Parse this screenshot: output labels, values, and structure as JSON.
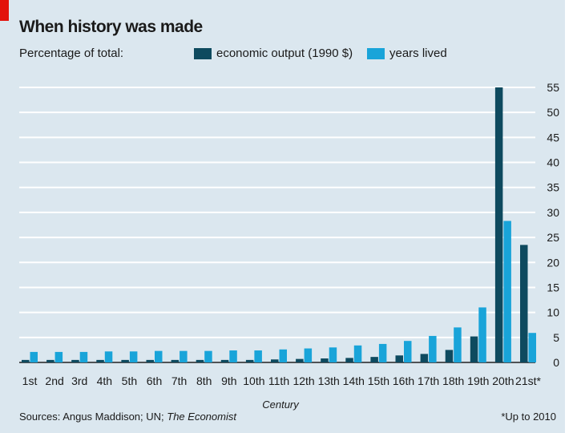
{
  "header": {
    "title": "When history was made",
    "subtitle": "Percentage of total:"
  },
  "footer": {
    "source_prefix": "Sources: Angus Maddison; UN; ",
    "source_italic": "The Economist",
    "footnote": "*Up to 2010"
  },
  "colors": {
    "economic_output": "#0e4a5f",
    "years_lived": "#19a4d9",
    "background": "#dbe7ef",
    "accent": "#e3120b"
  },
  "chart_data": {
    "type": "bar",
    "title": "When history was made",
    "ylabel": "Percentage of total:",
    "xlabel": "Century",
    "ylim": [
      0,
      55
    ],
    "yticks": [
      0,
      5,
      10,
      15,
      20,
      25,
      30,
      35,
      40,
      45,
      50,
      55
    ],
    "grid": true,
    "legend_position": "top",
    "y_axis_side": "right",
    "categories": [
      "1st",
      "2nd",
      "3rd",
      "4th",
      "5th",
      "6th",
      "7th",
      "8th",
      "9th",
      "10th",
      "11th",
      "12th",
      "13th",
      "14th",
      "15th",
      "16th",
      "17th",
      "18th",
      "19th",
      "20th",
      "21st*"
    ],
    "series": [
      {
        "name": "economic output (1990 $)",
        "color": "#0e4a5f",
        "values": [
          0.5,
          0.5,
          0.5,
          0.5,
          0.5,
          0.5,
          0.5,
          0.5,
          0.5,
          0.5,
          0.6,
          0.7,
          0.8,
          0.9,
          1.1,
          1.4,
          1.7,
          2.5,
          5.2,
          55,
          23.5
        ]
      },
      {
        "name": "years lived",
        "color": "#19a4d9",
        "values": [
          2.1,
          2.1,
          2.1,
          2.2,
          2.2,
          2.3,
          2.3,
          2.3,
          2.4,
          2.4,
          2.6,
          2.8,
          3.0,
          3.4,
          3.7,
          4.3,
          5.3,
          7.0,
          11.0,
          28.3,
          5.9
        ]
      }
    ]
  }
}
